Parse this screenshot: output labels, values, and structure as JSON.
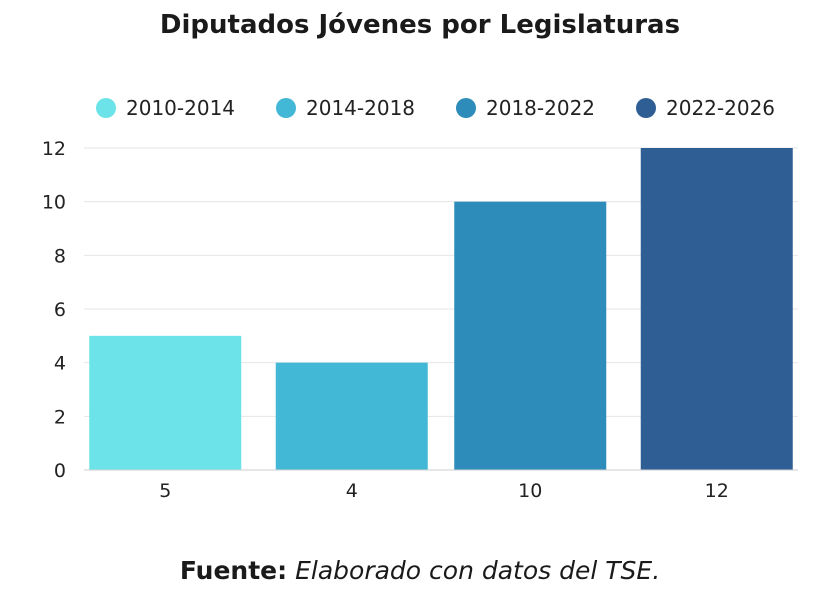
{
  "chart_data": {
    "type": "bar",
    "title": "Diputados Jóvenes por Legislaturas",
    "categories": [
      "5",
      "4",
      "10",
      "12"
    ],
    "series": [
      {
        "name": "2010-2014",
        "value": 5,
        "color": "#6ce3e8"
      },
      {
        "name": "2014-2018",
        "value": 4,
        "color": "#43b8d6"
      },
      {
        "name": "2018-2022",
        "value": 10,
        "color": "#2e8cba"
      },
      {
        "name": "2022-2026",
        "value": 12,
        "color": "#2e5e94"
      }
    ],
    "y_ticks": [
      "0",
      "2",
      "4",
      "6",
      "8",
      "10",
      "12"
    ],
    "ylim": [
      0,
      12
    ],
    "grid": true,
    "legend_position": "top"
  },
  "source": {
    "label": "Fuente:",
    "text": "Elaborado con datos del TSE."
  }
}
